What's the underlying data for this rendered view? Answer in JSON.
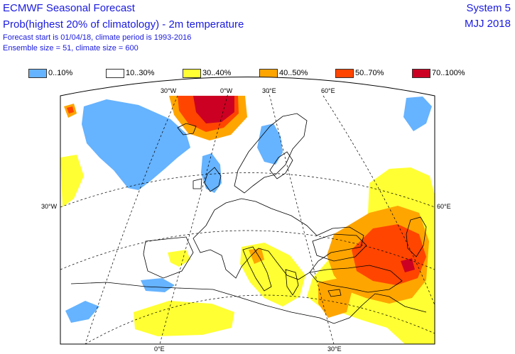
{
  "header": {
    "title": "ECMWF Seasonal Forecast",
    "subtitle": "Prob(highest 20% of climatology) - 2m temperature",
    "forecast_info": "Forecast start is 01/04/18, climate period is 1993-2016",
    "ensemble_info": "Ensemble size = 51, climate size = 600",
    "system": "System 5",
    "period": "MJJ 2018"
  },
  "legend": [
    {
      "label": "0..10%",
      "color": "#66b3ff"
    },
    {
      "label": "10..30%",
      "color": "#ffffff"
    },
    {
      "label": "30..40%",
      "color": "#ffff33"
    },
    {
      "label": "40..50%",
      "color": "#ffa500"
    },
    {
      "label": "50..70%",
      "color": "#ff4500"
    },
    {
      "label": "70..100%",
      "color": "#cc0022"
    }
  ],
  "map": {
    "coord_labels": {
      "top_w30": "30°W",
      "top_0": "0°W",
      "top_e30": "30°E",
      "top_e60": "60°E",
      "left_w30": "30°W",
      "right_e60": "60°E",
      "bottom_0": "0°E",
      "bottom_e30": "30°E"
    }
  }
}
